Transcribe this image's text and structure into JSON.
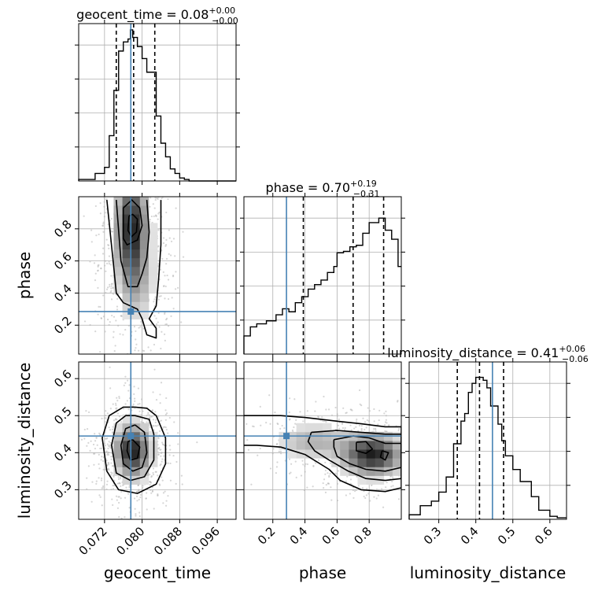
{
  "chart_data": {
    "type": "corner",
    "parameters": [
      "geocent_time",
      "phase",
      "luminosity_distance"
    ],
    "titles": [
      {
        "param": "geocent_time",
        "prefix": "geocent_time = 0.08",
        "plus": "+0.00",
        "minus": "−0.00"
      },
      {
        "param": "phase",
        "prefix": "phase = 0.70",
        "plus": "+0.19",
        "minus": "−0.31"
      },
      {
        "param": "luminosity_distance",
        "prefix": "luminosity_distance = 0.41",
        "plus": "+0.06",
        "minus": "−0.06"
      }
    ],
    "axis_labels": [
      "geocent_time",
      "phase",
      "luminosity_distance"
    ],
    "ranges": {
      "geocent_time": [
        0.0665,
        0.1
      ],
      "phase": [
        0.02,
        1.0
      ],
      "luminosity_distance": [
        0.22,
        0.645
      ]
    },
    "ticks": {
      "geocent_time": {
        "values": [
          0.072,
          0.08,
          0.088,
          0.096
        ],
        "labels": [
          "0.072",
          "0.080",
          "0.088",
          "0.096"
        ]
      },
      "phase": {
        "values": [
          0.2,
          0.4,
          0.6,
          0.8
        ],
        "labels": [
          "0.2",
          "0.4",
          "0.6",
          "0.8"
        ]
      },
      "luminosity_distance": {
        "values": [
          0.3,
          0.4,
          0.5,
          0.6
        ],
        "labels": [
          "0.3",
          "0.4",
          "0.5",
          "0.6"
        ]
      }
    },
    "truths": {
      "geocent_time": 0.0776,
      "phase": 0.285,
      "luminosity_distance": 0.445
    },
    "quantiles": {
      "geocent_time": [
        0.0745,
        0.0782,
        0.0827
      ],
      "phase": [
        0.39,
        0.7,
        0.89
      ],
      "luminosity_distance": [
        0.35,
        0.41,
        0.475
      ]
    },
    "histograms": {
      "geocent_time": {
        "edges": [
          0.0665,
          0.07,
          0.072,
          0.073,
          0.074,
          0.075,
          0.076,
          0.077,
          0.0775,
          0.078,
          0.079,
          0.08,
          0.081,
          0.083,
          0.084,
          0.085,
          0.086,
          0.087,
          0.088,
          0.089,
          0.09,
          0.1
        ],
        "counts": [
          0.01,
          0.05,
          0.09,
          0.3,
          0.6,
          0.86,
          0.92,
          0.94,
          1.0,
          0.95,
          0.89,
          0.81,
          0.72,
          0.43,
          0.25,
          0.16,
          0.08,
          0.05,
          0.02,
          0.01,
          0.0
        ]
      },
      "phase": {
        "edges": [
          0.02,
          0.06,
          0.1,
          0.16,
          0.22,
          0.26,
          0.3,
          0.34,
          0.38,
          0.42,
          0.46,
          0.5,
          0.54,
          0.58,
          0.6,
          0.64,
          0.68,
          0.72,
          0.76,
          0.8,
          0.86,
          0.9,
          0.94,
          0.98,
          1.0
        ],
        "counts": [
          0.12,
          0.18,
          0.2,
          0.22,
          0.26,
          0.3,
          0.28,
          0.34,
          0.38,
          0.43,
          0.46,
          0.49,
          0.54,
          0.58,
          0.67,
          0.68,
          0.71,
          0.72,
          0.8,
          0.87,
          0.9,
          0.82,
          0.76,
          0.58
        ]
      },
      "luminosity_distance": {
        "edges": [
          0.22,
          0.25,
          0.28,
          0.3,
          0.32,
          0.34,
          0.36,
          0.37,
          0.38,
          0.39,
          0.4,
          0.42,
          0.43,
          0.44,
          0.46,
          0.47,
          0.48,
          0.5,
          0.52,
          0.55,
          0.57,
          0.6,
          0.62,
          0.645
        ],
        "counts": [
          0.03,
          0.09,
          0.12,
          0.18,
          0.28,
          0.5,
          0.65,
          0.7,
          0.84,
          0.9,
          0.94,
          0.92,
          0.87,
          0.75,
          0.63,
          0.52,
          0.42,
          0.33,
          0.25,
          0.15,
          0.06,
          0.02,
          0.01
        ]
      }
    },
    "contours": {
      "phase_vs_geocent_time": [
        [
          [
            0.0725,
            0.98
          ],
          [
            0.074,
            0.55
          ],
          [
            0.0745,
            0.4
          ],
          [
            0.076,
            0.34
          ],
          [
            0.079,
            0.3
          ],
          [
            0.08,
            0.24
          ],
          [
            0.081,
            0.14
          ],
          [
            0.083,
            0.12
          ],
          [
            0.083,
            0.18
          ],
          [
            0.0815,
            0.24
          ],
          [
            0.083,
            0.32
          ],
          [
            0.0835,
            0.48
          ],
          [
            0.084,
            0.7
          ],
          [
            0.084,
            0.98
          ]
        ],
        [
          [
            0.0745,
            0.98
          ],
          [
            0.0755,
            0.6
          ],
          [
            0.077,
            0.44
          ],
          [
            0.079,
            0.44
          ],
          [
            0.08,
            0.52
          ],
          [
            0.081,
            0.62
          ],
          [
            0.0815,
            0.78
          ],
          [
            0.081,
            0.98
          ]
        ],
        [
          [
            0.076,
            0.93
          ],
          [
            0.076,
            0.74
          ],
          [
            0.0768,
            0.7
          ],
          [
            0.079,
            0.73
          ],
          [
            0.08,
            0.82
          ],
          [
            0.0795,
            0.93
          ],
          [
            0.0778,
            0.98
          ],
          [
            0.076,
            0.93
          ]
        ],
        [
          [
            0.0772,
            0.88
          ],
          [
            0.077,
            0.79
          ],
          [
            0.0777,
            0.75
          ],
          [
            0.0788,
            0.78
          ],
          [
            0.079,
            0.86
          ],
          [
            0.078,
            0.89
          ],
          [
            0.0772,
            0.88
          ]
        ]
      ],
      "luminosity_distance_vs_geocent_time": [
        [
          [
            0.0785,
            0.523
          ],
          [
            0.081,
            0.52
          ],
          [
            0.083,
            0.5
          ],
          [
            0.085,
            0.44
          ],
          [
            0.085,
            0.37
          ],
          [
            0.083,
            0.315
          ],
          [
            0.079,
            0.29
          ],
          [
            0.075,
            0.3
          ],
          [
            0.0725,
            0.35
          ],
          [
            0.0715,
            0.44
          ],
          [
            0.073,
            0.5
          ],
          [
            0.076,
            0.523
          ],
          [
            0.0785,
            0.523
          ]
        ],
        [
          [
            0.0785,
            0.5
          ],
          [
            0.0815,
            0.49
          ],
          [
            0.0825,
            0.45
          ],
          [
            0.0825,
            0.38
          ],
          [
            0.0805,
            0.335
          ],
          [
            0.0775,
            0.325
          ],
          [
            0.0745,
            0.345
          ],
          [
            0.0735,
            0.42
          ],
          [
            0.0745,
            0.48
          ],
          [
            0.0765,
            0.5
          ],
          [
            0.0785,
            0.5
          ]
        ],
        [
          [
            0.0785,
            0.475
          ],
          [
            0.0805,
            0.455
          ],
          [
            0.081,
            0.4
          ],
          [
            0.08,
            0.36
          ],
          [
            0.078,
            0.35
          ],
          [
            0.076,
            0.37
          ],
          [
            0.0755,
            0.42
          ],
          [
            0.0765,
            0.465
          ],
          [
            0.0785,
            0.475
          ]
        ],
        [
          [
            0.078,
            0.435
          ],
          [
            0.0795,
            0.415
          ],
          [
            0.079,
            0.385
          ],
          [
            0.0775,
            0.38
          ],
          [
            0.0768,
            0.405
          ],
          [
            0.077,
            0.43
          ],
          [
            0.078,
            0.435
          ]
        ]
      ],
      "luminosity_distance_vs_phase": [
        [
          [
            0.02,
            0.5
          ],
          [
            0.25,
            0.5
          ],
          [
            0.4,
            0.495
          ],
          [
            0.6,
            0.485
          ],
          [
            0.75,
            0.478
          ],
          [
            0.9,
            0.47
          ],
          [
            1.0,
            0.47
          ],
          [
            1.0,
            0.305
          ],
          [
            0.9,
            0.295
          ],
          [
            0.75,
            0.3
          ],
          [
            0.62,
            0.325
          ],
          [
            0.55,
            0.355
          ],
          [
            0.4,
            0.395
          ],
          [
            0.25,
            0.415
          ],
          [
            0.1,
            0.42
          ],
          [
            0.02,
            0.42
          ]
        ],
        [
          [
            0.44,
            0.455
          ],
          [
            0.6,
            0.46
          ],
          [
            0.75,
            0.455
          ],
          [
            0.9,
            0.45
          ],
          [
            1.0,
            0.45
          ],
          [
            1.0,
            0.33
          ],
          [
            0.9,
            0.325
          ],
          [
            0.78,
            0.33
          ],
          [
            0.67,
            0.35
          ],
          [
            0.55,
            0.38
          ],
          [
            0.46,
            0.405
          ],
          [
            0.42,
            0.43
          ],
          [
            0.44,
            0.455
          ]
        ],
        [
          [
            0.58,
            0.435
          ],
          [
            0.7,
            0.445
          ],
          [
            0.8,
            0.44
          ],
          [
            0.9,
            0.425
          ],
          [
            1.0,
            0.425
          ],
          [
            1.0,
            0.36
          ],
          [
            0.9,
            0.35
          ],
          [
            0.78,
            0.355
          ],
          [
            0.68,
            0.37
          ],
          [
            0.6,
            0.39
          ],
          [
            0.58,
            0.415
          ],
          [
            0.58,
            0.435
          ]
        ],
        [
          [
            0.72,
            0.428
          ],
          [
            0.78,
            0.43
          ],
          [
            0.82,
            0.41
          ],
          [
            0.78,
            0.398
          ],
          [
            0.72,
            0.405
          ],
          [
            0.72,
            0.428
          ]
        ],
        [
          [
            0.88,
            0.405
          ],
          [
            0.92,
            0.4
          ],
          [
            0.9,
            0.38
          ],
          [
            0.87,
            0.388
          ],
          [
            0.88,
            0.405
          ]
        ]
      ]
    },
    "density_peaks": {
      "phase_vs_geocent_time": [
        {
          "x": 0.0778,
          "y": 0.8,
          "sx": 0.0022,
          "sy": 0.22,
          "w": 1.0
        },
        {
          "x": 0.079,
          "y": 0.45,
          "sx": 0.0025,
          "sy": 0.15,
          "w": 0.25
        }
      ],
      "luminosity_distance_vs_geocent_time": [
        {
          "x": 0.078,
          "y": 0.405,
          "sx": 0.0024,
          "sy": 0.045,
          "w": 1.0
        }
      ],
      "luminosity_distance_vs_phase": [
        {
          "x": 0.82,
          "y": 0.395,
          "sx": 0.12,
          "sy": 0.035,
          "w": 1.0
        },
        {
          "x": 0.45,
          "y": 0.43,
          "sx": 0.14,
          "sy": 0.03,
          "w": 0.35
        }
      ]
    },
    "colors": {
      "truth": "#4682b4",
      "hist": "#000000",
      "grid": "#b0b0b0",
      "scatter": "#b4b4b4"
    }
  }
}
